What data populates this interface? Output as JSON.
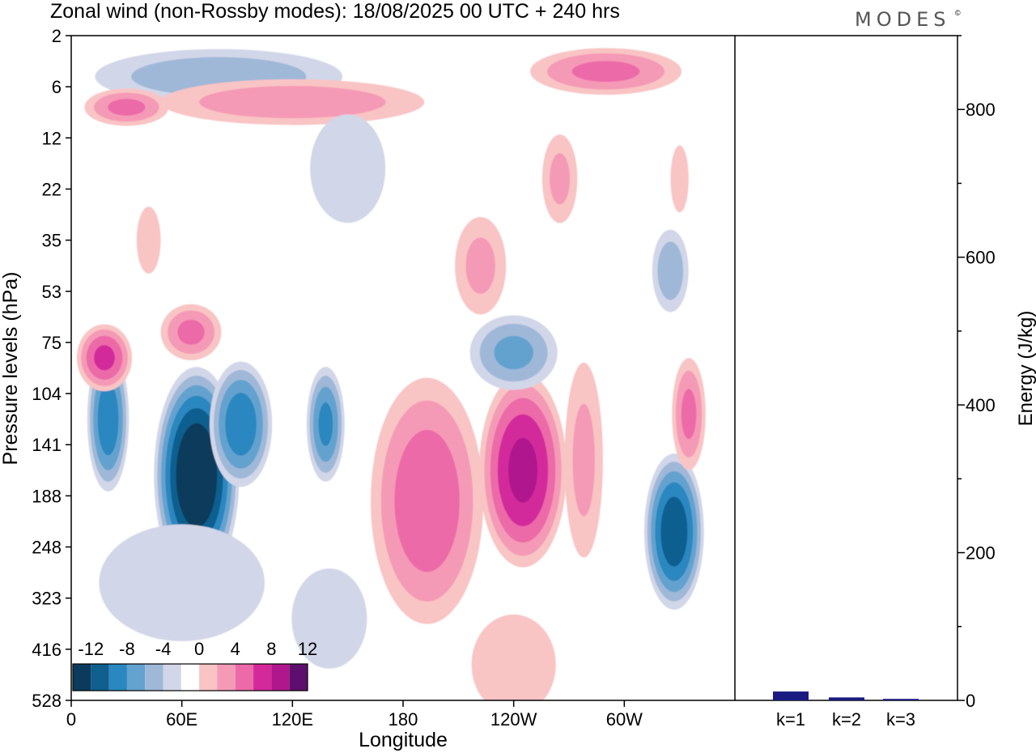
{
  "title": "Zonal wind (non-Rossby modes):  18/08/2025  00 UTC  + 240 hrs",
  "logo": "MODES",
  "logo_mark": "©",
  "chart_data": [
    {
      "type": "heatmap",
      "title": "Zonal wind (non-Rossby modes):  18/08/2025  00 UTC  + 240 hrs",
      "xlabel": "Longitude",
      "ylabel": "Pressure levels (hPa)",
      "x_ticks": [
        "0",
        "60E",
        "120E",
        "180",
        "120W",
        "60W"
      ],
      "x_tick_lon": [
        0,
        60,
        120,
        180,
        240,
        300
      ],
      "xlim": [
        0,
        360
      ],
      "y_ticks": [
        "2",
        "6",
        "12",
        "22",
        "35",
        "53",
        "75",
        "104",
        "141",
        "188",
        "248",
        "323",
        "416",
        "528"
      ],
      "colorbar": {
        "labels": [
          "-12",
          "-8",
          "-4",
          "0",
          "4",
          "8",
          "12"
        ],
        "levels": [
          -14,
          -12,
          -10,
          -8,
          -6,
          -4,
          -2,
          2,
          4,
          6,
          8,
          10,
          12,
          14
        ],
        "colors": [
          "#0b3a5c",
          "#0f5f8f",
          "#2a87bf",
          "#64a2cf",
          "#9fb8d8",
          "#d1d6e8",
          "#ffffff",
          "#f9c4c4",
          "#f59ab6",
          "#ec6aa8",
          "#d3299b",
          "#b0178d",
          "#5e0f6e"
        ]
      },
      "blobs": [
        {
          "lon": 20,
          "lev": 7.5,
          "v": -9,
          "rx": 12,
          "ry": 1.5
        },
        {
          "lon": 68,
          "lev": 8.6,
          "v": -14,
          "rx": 24,
          "ry": 2.2
        },
        {
          "lon": 92,
          "lev": 7.6,
          "v": -9,
          "rx": 18,
          "ry": 1.3
        },
        {
          "lon": 138,
          "lev": 7.6,
          "v": -8,
          "rx": 11,
          "ry": 1.2
        },
        {
          "lon": 193,
          "lev": 9.1,
          "v": 7,
          "rx": 33,
          "ry": 2.6
        },
        {
          "lon": 245,
          "lev": 8.5,
          "v": 10,
          "rx": 25,
          "ry": 2.0
        },
        {
          "lon": 278,
          "lev": 8.3,
          "v": 4,
          "rx": 12,
          "ry": 2.2
        },
        {
          "lon": 327,
          "lev": 9.7,
          "v": -11,
          "rx": 17,
          "ry": 1.6
        },
        {
          "lon": 335,
          "lev": 7.4,
          "v": 6,
          "rx": 10,
          "ry": 1.2
        },
        {
          "lon": 18,
          "lev": 6.3,
          "v": 8,
          "rx": 16,
          "ry": 0.7
        },
        {
          "lon": 65,
          "lev": 5.8,
          "v": 6,
          "rx": 18,
          "ry": 0.6
        },
        {
          "lon": 240,
          "lev": 6.2,
          "v": -6,
          "rx": 26,
          "ry": 0.8
        },
        {
          "lon": 325,
          "lev": 4.6,
          "v": -5,
          "rx": 11,
          "ry": 0.9
        },
        {
          "lon": 222,
          "lev": 4.5,
          "v": 4,
          "rx": 16,
          "ry": 1.1
        },
        {
          "lon": 265,
          "lev": 2.8,
          "v": 4,
          "rx": 11,
          "ry": 1.0
        },
        {
          "lon": 60,
          "lev": 10.7,
          "v": -3,
          "rx": 55,
          "ry": 1.4
        },
        {
          "lon": 140,
          "lev": 11.4,
          "v": -3,
          "rx": 25,
          "ry": 1.2
        },
        {
          "lon": 240,
          "lev": 12.3,
          "v": 3,
          "rx": 28,
          "ry": 1.2
        },
        {
          "lon": 80,
          "lev": 0.8,
          "v": -5,
          "rx": 75,
          "ry": 0.6
        },
        {
          "lon": 120,
          "lev": 1.3,
          "v": 5,
          "rx": 80,
          "ry": 0.5
        },
        {
          "lon": 30,
          "lev": 1.4,
          "v": 6,
          "rx": 25,
          "ry": 0.4
        },
        {
          "lon": 290,
          "lev": 0.7,
          "v": 6,
          "rx": 45,
          "ry": 0.5
        },
        {
          "lon": 150,
          "lev": 2.6,
          "v": -3,
          "rx": 25,
          "ry": 1.3
        },
        {
          "lon": 330,
          "lev": 2.8,
          "v": 3,
          "rx": 6,
          "ry": 0.8
        },
        {
          "lon": 42,
          "lev": 4.0,
          "v": 3,
          "rx": 8,
          "ry": 0.8
        }
      ]
    },
    {
      "type": "bar",
      "categories": [
        "k=1",
        "k=2",
        "k=3"
      ],
      "values": [
        12,
        4,
        2
      ],
      "ylabel": "Energy (J/kg)",
      "ylim": [
        0,
        900
      ],
      "y_ticks": [
        0,
        200,
        400,
        600,
        800
      ],
      "colors": [
        "#1a1a80",
        "#1a1a80",
        "#1a1a80"
      ]
    }
  ]
}
